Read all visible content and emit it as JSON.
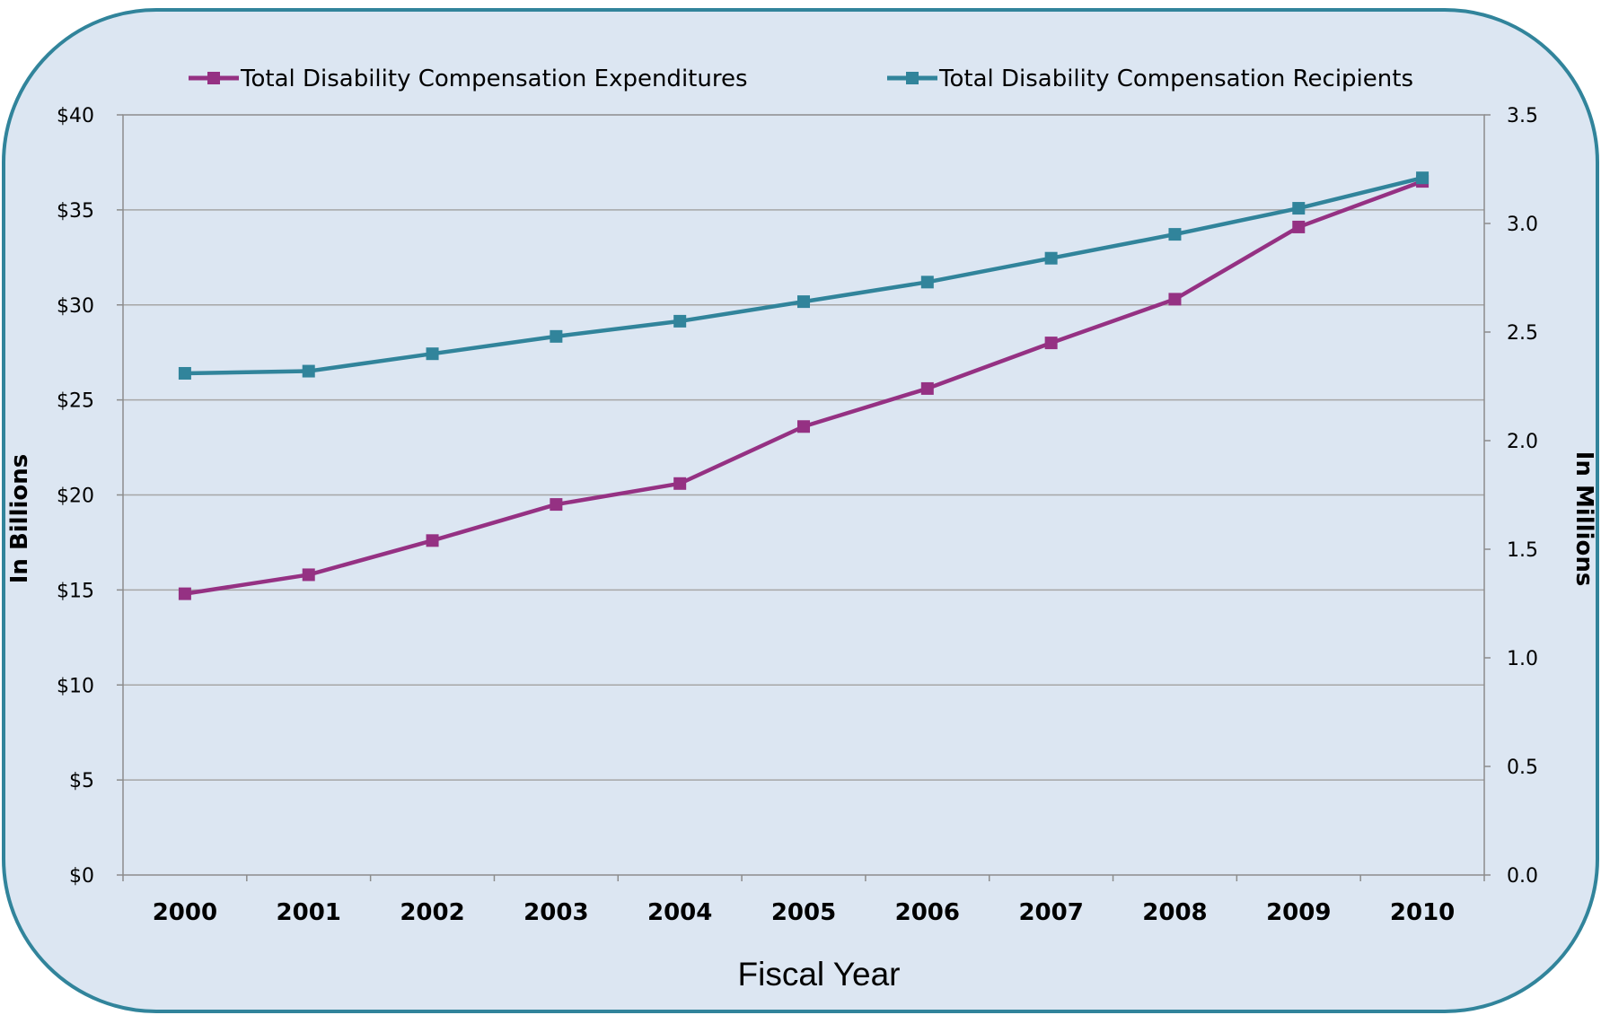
{
  "chart_data": {
    "type": "line",
    "title": "",
    "xlabel": "Fiscal Year",
    "ylabel": "In Billions",
    "y2label": "In Millions",
    "categories": [
      "2000",
      "2001",
      "2002",
      "2003",
      "2004",
      "2005",
      "2006",
      "2007",
      "2008",
      "2009",
      "2010"
    ],
    "y_ticks": [
      "$0",
      "$5",
      "$10",
      "$15",
      "$20",
      "$25",
      "$30",
      "$35",
      "$40"
    ],
    "y2_ticks": [
      "0.0",
      "0.5",
      "1.0",
      "1.5",
      "2.0",
      "2.5",
      "3.0",
      "3.5"
    ],
    "ylim": [
      0,
      40
    ],
    "y2lim": [
      0,
      3.5
    ],
    "grid": true,
    "legend_position": "top",
    "series": [
      {
        "name": "Total Disability Compensation Expenditures",
        "axis": "left",
        "color": "#953183",
        "marker": "square",
        "values": [
          14.8,
          15.8,
          17.6,
          19.5,
          20.6,
          23.6,
          25.6,
          28.0,
          30.3,
          34.1,
          36.5
        ]
      },
      {
        "name": "Total Disability Compensation Recipients",
        "axis": "right",
        "color": "#31849B",
        "marker": "square",
        "values": [
          2.31,
          2.32,
          2.4,
          2.48,
          2.55,
          2.64,
          2.73,
          2.84,
          2.95,
          3.07,
          3.21
        ]
      }
    ],
    "background_color": "#DCE6F2",
    "frame_color": "#31849B"
  }
}
